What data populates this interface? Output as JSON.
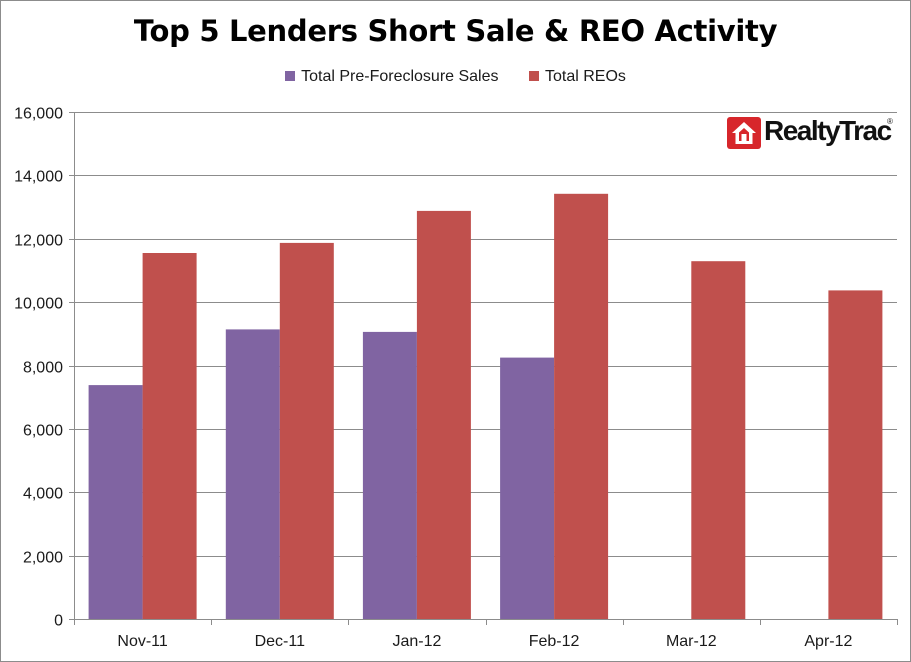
{
  "chart_data": {
    "type": "bar",
    "title": "Top 5 Lenders Short Sale & REO Activity",
    "categories": [
      "Nov-11",
      "Dec-11",
      "Jan-12",
      "Feb-12",
      "Mar-12",
      "Apr-12"
    ],
    "series": [
      {
        "name": "Total Pre-Foreclosure Sales",
        "color": "#8064a2",
        "values": [
          7380,
          9140,
          9060,
          8250,
          null,
          null
        ]
      },
      {
        "name": "Total REOs",
        "color": "#c0504d",
        "values": [
          11550,
          11870,
          12880,
          13420,
          11290,
          10370
        ]
      }
    ],
    "ylim": [
      0,
      16000
    ],
    "yticks": [
      "0",
      "2,000",
      "4,000",
      "6,000",
      "8,000",
      "10,000",
      "12,000",
      "14,000",
      "16,000"
    ],
    "ytick_values": [
      0,
      2000,
      4000,
      6000,
      8000,
      10000,
      12000,
      14000,
      16000
    ],
    "grid": true,
    "legend": "top"
  },
  "logo": {
    "text": "RealtyTrac",
    "mark": "®",
    "icon": "house-icon",
    "color": "#d7262b"
  }
}
